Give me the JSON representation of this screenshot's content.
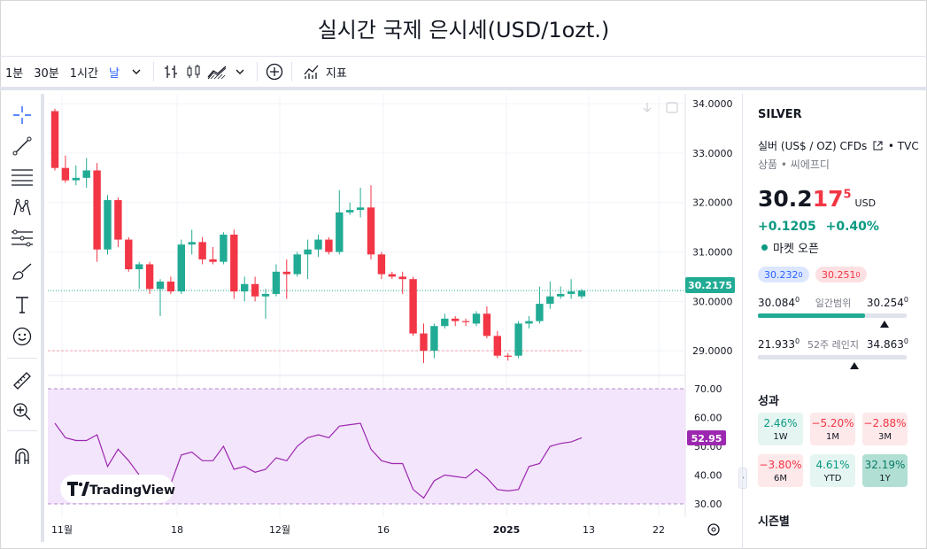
{
  "title": "실시간 국제 은시세(USD/1ozt.)",
  "toolbar": {
    "intervals": [
      "1분",
      "30분",
      "1시간",
      "날"
    ],
    "indicators_label": "지표"
  },
  "chart": {
    "price_axis": [
      "34.0000",
      "33.0000",
      "32.0000",
      "31.0000",
      "30.0000",
      "29.0000"
    ],
    "current_price_label": "30.2175",
    "rsi_axis": [
      "70.00",
      "60.00",
      "50.00",
      "40.00",
      "30.00"
    ],
    "rsi_value_label": "52.95",
    "time_axis": [
      "11월",
      "18",
      "12월",
      "16",
      "2025",
      "13",
      "22"
    ],
    "watermark": "TradingView",
    "colors": {
      "up": "#22ab94",
      "down": "#f23645",
      "rsi": "#9c27b0",
      "rsi_bg": "#f3e5fb"
    }
  },
  "chart_data": {
    "type": "candlestick",
    "candles": [
      {
        "o": 33.85,
        "h": 33.9,
        "l": 32.65,
        "c": 32.7
      },
      {
        "o": 32.7,
        "h": 32.95,
        "l": 32.4,
        "c": 32.45
      },
      {
        "o": 32.45,
        "h": 32.75,
        "l": 32.35,
        "c": 32.5
      },
      {
        "o": 32.5,
        "h": 32.9,
        "l": 32.3,
        "c": 32.65
      },
      {
        "o": 32.65,
        "h": 32.8,
        "l": 30.8,
        "c": 31.05
      },
      {
        "o": 31.05,
        "h": 32.15,
        "l": 30.95,
        "c": 32.05
      },
      {
        "o": 32.05,
        "h": 32.1,
        "l": 31.1,
        "c": 31.25
      },
      {
        "o": 31.25,
        "h": 31.3,
        "l": 30.6,
        "c": 30.65
      },
      {
        "o": 30.65,
        "h": 30.8,
        "l": 30.25,
        "c": 30.75
      },
      {
        "o": 30.75,
        "h": 30.8,
        "l": 30.15,
        "c": 30.25
      },
      {
        "o": 30.25,
        "h": 30.45,
        "l": 29.7,
        "c": 30.4
      },
      {
        "o": 30.4,
        "h": 30.5,
        "l": 30.15,
        "c": 30.2
      },
      {
        "o": 30.2,
        "h": 31.25,
        "l": 30.15,
        "c": 31.15
      },
      {
        "o": 31.15,
        "h": 31.45,
        "l": 30.95,
        "c": 31.2
      },
      {
        "o": 31.2,
        "h": 31.3,
        "l": 30.75,
        "c": 30.85
      },
      {
        "o": 30.85,
        "h": 31.1,
        "l": 30.75,
        "c": 30.8
      },
      {
        "o": 30.8,
        "h": 31.4,
        "l": 30.75,
        "c": 31.35
      },
      {
        "o": 31.35,
        "h": 31.45,
        "l": 30.05,
        "c": 30.2
      },
      {
        "o": 30.2,
        "h": 30.5,
        "l": 30.0,
        "c": 30.35
      },
      {
        "o": 30.35,
        "h": 30.5,
        "l": 30.0,
        "c": 30.1
      },
      {
        "o": 30.1,
        "h": 30.25,
        "l": 29.65,
        "c": 30.15
      },
      {
        "o": 30.15,
        "h": 30.75,
        "l": 30.1,
        "c": 30.6
      },
      {
        "o": 30.6,
        "h": 30.85,
        "l": 30.05,
        "c": 30.55
      },
      {
        "o": 30.55,
        "h": 31.0,
        "l": 30.5,
        "c": 30.95
      },
      {
        "o": 30.95,
        "h": 31.25,
        "l": 30.45,
        "c": 31.05
      },
      {
        "o": 31.05,
        "h": 31.35,
        "l": 30.9,
        "c": 31.25
      },
      {
        "o": 31.25,
        "h": 31.3,
        "l": 30.95,
        "c": 31.0
      },
      {
        "o": 31.0,
        "h": 32.25,
        "l": 30.95,
        "c": 31.8
      },
      {
        "o": 31.8,
        "h": 32.0,
        "l": 31.75,
        "c": 31.85
      },
      {
        "o": 31.85,
        "h": 32.3,
        "l": 31.7,
        "c": 31.9
      },
      {
        "o": 31.9,
        "h": 32.35,
        "l": 30.85,
        "c": 30.95
      },
      {
        "o": 30.95,
        "h": 31.0,
        "l": 30.45,
        "c": 30.55
      },
      {
        "o": 30.55,
        "h": 30.6,
        "l": 30.45,
        "c": 30.5
      },
      {
        "o": 30.5,
        "h": 30.6,
        "l": 30.15,
        "c": 30.45
      },
      {
        "o": 30.45,
        "h": 30.5,
        "l": 29.3,
        "c": 29.35
      },
      {
        "o": 29.35,
        "h": 29.55,
        "l": 28.75,
        "c": 29.0
      },
      {
        "o": 29.0,
        "h": 29.55,
        "l": 28.85,
        "c": 29.5
      },
      {
        "o": 29.5,
        "h": 29.75,
        "l": 29.45,
        "c": 29.65
      },
      {
        "o": 29.65,
        "h": 29.7,
        "l": 29.5,
        "c": 29.6
      },
      {
        "o": 29.6,
        "h": 29.65,
        "l": 29.5,
        "c": 29.58
      },
      {
        "o": 29.55,
        "h": 29.8,
        "l": 29.5,
        "c": 29.75
      },
      {
        "o": 29.75,
        "h": 29.9,
        "l": 29.25,
        "c": 29.3
      },
      {
        "o": 29.3,
        "h": 29.4,
        "l": 28.85,
        "c": 28.9
      },
      {
        "o": 28.9,
        "h": 28.95,
        "l": 28.8,
        "c": 28.88
      },
      {
        "o": 28.9,
        "h": 29.6,
        "l": 28.85,
        "c": 29.55
      },
      {
        "o": 29.55,
        "h": 29.7,
        "l": 29.45,
        "c": 29.6
      },
      {
        "o": 29.6,
        "h": 30.3,
        "l": 29.55,
        "c": 29.95
      },
      {
        "o": 29.95,
        "h": 30.4,
        "l": 29.85,
        "c": 30.1
      },
      {
        "o": 30.1,
        "h": 30.3,
        "l": 30.05,
        "c": 30.15
      },
      {
        "o": 30.15,
        "h": 30.45,
        "l": 30.05,
        "c": 30.2
      },
      {
        "o": 30.1,
        "h": 30.25,
        "l": 30.05,
        "c": 30.2175
      }
    ],
    "rsi": [
      58,
      53,
      52,
      52,
      54,
      43,
      49,
      45,
      40,
      37,
      36,
      37,
      47,
      48,
      45,
      45,
      50,
      42,
      43,
      41,
      42,
      46,
      45,
      50,
      53,
      54,
      53,
      57,
      57.5,
      58,
      49,
      45,
      44,
      44,
      35,
      32,
      38,
      40,
      39.5,
      39,
      42,
      39,
      35,
      34.5,
      35,
      43,
      44,
      50,
      51,
      51.5,
      52.95
    ],
    "price_levels": {
      "current": 30.2175,
      "low_ref": 29.0
    },
    "ylim": [
      28.5,
      34.2
    ],
    "rsi_lim": [
      30,
      70
    ]
  },
  "panel": {
    "symbol": "SILVER",
    "name": "실버 (US$ / OZ) CFDs",
    "source": "TVC",
    "category": "상품 • 씨에프디",
    "price_main": "30.2",
    "price_hl": "17",
    "price_sup": "5",
    "currency": "USD",
    "change": "+0.1205",
    "change_pct": "+0.40%",
    "market_status": "마켓 오픈",
    "bid": "30.232",
    "bid_sup": "0",
    "ask": "30.251",
    "ask_sup": "0",
    "day_low": "30.084",
    "day_low_sup": "0",
    "day_label": "일간범위",
    "day_high": "30.254",
    "day_high_sup": "0",
    "day_fill": 0.72,
    "week_low": "21.933",
    "week_low_sup": "0",
    "week_label": "52주 레인지",
    "week_high": "34.863",
    "week_high_sup": "0",
    "week_pos": 0.65,
    "performance_title": "성과",
    "performance": [
      {
        "value": "2.46%",
        "period": "1W",
        "tone": "pos"
      },
      {
        "value": "−5.20%",
        "period": "1M",
        "tone": "neg"
      },
      {
        "value": "−2.88%",
        "period": "3M",
        "tone": "neg"
      },
      {
        "value": "−3.80%",
        "period": "6M",
        "tone": "neg"
      },
      {
        "value": "4.61%",
        "period": "YTD",
        "tone": "pos"
      },
      {
        "value": "32.19%",
        "period": "1Y",
        "tone": "pos-strong"
      }
    ],
    "season_title": "시즌별"
  }
}
